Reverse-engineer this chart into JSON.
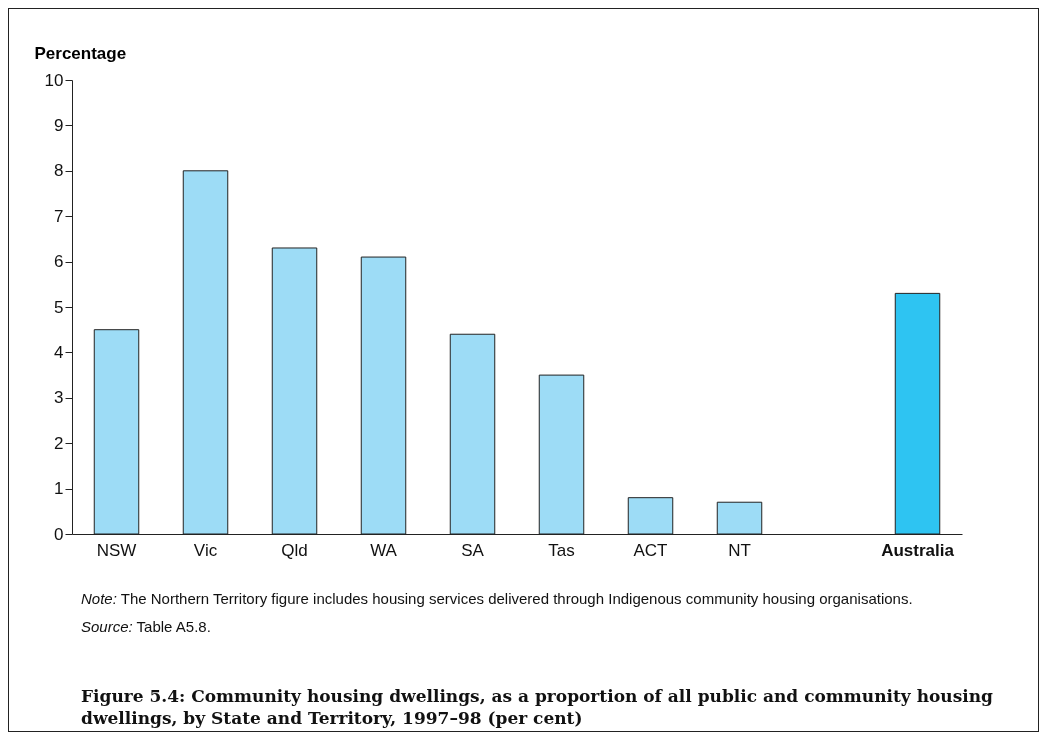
{
  "chart_data": {
    "type": "bar",
    "title": "Figure 5.4: Community housing dwellings, as a proportion of all public and community housing dwellings, by State and Territory, 1997–98 (per cent)",
    "ylabel": "Percentage",
    "categories": [
      "NSW",
      "Vic",
      "Qld",
      "WA",
      "SA",
      "Tas",
      "ACT",
      "NT",
      null,
      "Australia"
    ],
    "values": [
      4.5,
      8.0,
      6.3,
      6.1,
      4.4,
      3.5,
      0.8,
      0.7,
      null,
      5.3
    ],
    "colors": [
      "#9ddcf6",
      "#9ddcf6",
      "#9ddcf6",
      "#9ddcf6",
      "#9ddcf6",
      "#9ddcf6",
      "#9ddcf6",
      "#9ddcf6",
      "#9ddcf6",
      "#2ec4f2"
    ],
    "ylim": [
      0,
      10
    ],
    "yticks": [
      0,
      1,
      2,
      3,
      4,
      5,
      6,
      7,
      8,
      9,
      10
    ],
    "grid": false,
    "annotations": [
      "Note: The Northern Territory figure includes housing services delivered through Indigenous community housing organisations.",
      "Source: Table A5.8."
    ]
  }
}
